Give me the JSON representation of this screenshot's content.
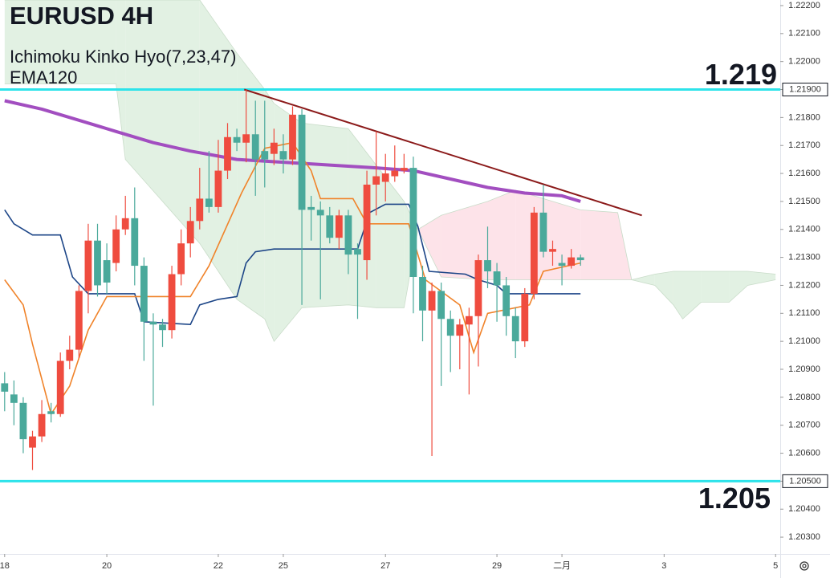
{
  "chart_data": {
    "type": "candlestick",
    "title": "EURUSD 4H",
    "up_color": "#ef4c3f",
    "down_color": "#4aa99b",
    "open": [
      1.2085,
      1.2081,
      1.2078,
      1.2062,
      1.2066,
      1.2075,
      1.2074,
      1.2093,
      1.2097,
      1.2118,
      1.2136,
      1.2129,
      1.2128,
      1.214,
      1.2144,
      1.2127,
      1.2107,
      1.2106,
      1.2104,
      1.2124,
      1.2135,
      1.2143,
      1.2151,
      1.2148,
      1.2161,
      1.2173,
      1.2171,
      1.2174,
      1.2168,
      1.2167,
      1.2168,
      1.2165,
      1.2181,
      1.2148,
      1.2147,
      1.2145,
      1.2137,
      1.2145,
      1.2133,
      1.2129,
      1.2156,
      1.2157,
      1.2159,
      1.2161,
      1.2162,
      1.2123,
      1.2111,
      1.2118,
      1.2108,
      1.2102,
      1.2106,
      1.2109,
      1.2129,
      1.2125,
      1.212,
      1.2109,
      1.21,
      1.2117,
      1.2146,
      1.2132,
      1.2128,
      1.2127,
      1.213
    ],
    "high": [
      1.2089,
      1.2086,
      1.208,
      1.2068,
      1.2079,
      1.2078,
      1.2096,
      1.2102,
      1.212,
      1.2142,
      1.2142,
      1.2135,
      1.2145,
      1.2152,
      1.2155,
      1.213,
      1.211,
      1.2108,
      1.2127,
      1.214,
      1.2148,
      1.2162,
      1.2168,
      1.2172,
      1.2178,
      1.2176,
      1.219,
      1.2186,
      1.2186,
      1.2176,
      1.2174,
      1.2184,
      1.2183,
      1.2152,
      1.215,
      1.2148,
      1.2147,
      1.2147,
      1.2135,
      1.2161,
      1.2175,
      1.2167,
      1.217,
      1.2167,
      1.2166,
      1.2127,
      1.2121,
      1.2121,
      1.2111,
      1.2108,
      1.2112,
      1.2131,
      1.2141,
      1.2128,
      1.2123,
      1.2112,
      1.2119,
      1.2148,
      1.2156,
      1.2136,
      1.2131,
      1.2133,
      1.2131
    ],
    "low": [
      1.2075,
      1.207,
      1.206,
      1.2054,
      1.2064,
      1.2071,
      1.2073,
      1.209,
      1.2094,
      1.211,
      1.2116,
      1.2117,
      1.2125,
      1.2138,
      1.212,
      1.2093,
      1.2077,
      1.2098,
      1.2101,
      1.212,
      1.213,
      1.214,
      1.2146,
      1.2146,
      1.2158,
      1.2168,
      1.2164,
      1.2152,
      1.2155,
      1.2163,
      1.216,
      1.2163,
      1.2113,
      1.2136,
      1.2115,
      1.2135,
      1.2133,
      1.2124,
      1.2108,
      1.2122,
      1.2145,
      1.215,
      1.2157,
      1.216,
      1.211,
      1.21,
      1.2059,
      1.2084,
      1.2089,
      1.209,
      1.2081,
      1.2091,
      1.2119,
      1.2107,
      1.2102,
      1.2094,
      1.2098,
      1.2115,
      1.213,
      1.2127,
      1.212,
      1.2126,
      1.2127
    ],
    "close": [
      1.2082,
      1.2078,
      1.2065,
      1.2066,
      1.2074,
      1.2074,
      1.2093,
      1.2097,
      1.2118,
      1.2136,
      1.212,
      1.2121,
      1.214,
      1.2144,
      1.2127,
      1.2107,
      1.2106,
      1.2104,
      1.2124,
      1.2135,
      1.2143,
      1.2151,
      1.2148,
      1.2161,
      1.2173,
      1.2171,
      1.2174,
      1.2165,
      1.2165,
      1.2171,
      1.2165,
      1.2181,
      1.2147,
      1.2147,
      1.2145,
      1.2137,
      1.2145,
      1.2131,
      1.2131,
      1.2156,
      1.2159,
      1.216,
      1.2161,
      1.2162,
      1.2123,
      1.2111,
      1.2118,
      1.2108,
      1.2102,
      1.2106,
      1.2109,
      1.2129,
      1.2125,
      1.212,
      1.2109,
      1.21,
      1.2117,
      1.2146,
      1.2132,
      1.2133,
      1.2127,
      1.213,
      1.2129
    ],
    "xlim": [
      -0.5,
      83.5
    ],
    "xticks": [
      {
        "value": 0,
        "label": "18"
      },
      {
        "value": 11,
        "label": "20"
      },
      {
        "value": 23,
        "label": "22"
      },
      {
        "value": 30,
        "label": "25"
      },
      {
        "value": 41,
        "label": "27"
      },
      {
        "value": 53,
        "label": "29"
      },
      {
        "value": 60,
        "label": "二月"
      },
      {
        "value": 71,
        "label": "3"
      },
      {
        "value": 83,
        "label": "5"
      }
    ],
    "ylim": [
      1.2024,
      1.2222
    ],
    "yticks": [
      {
        "value": 1.203,
        "label": "1.20300"
      },
      {
        "value": 1.204,
        "label": "1.20400"
      },
      {
        "value": 1.205,
        "label": "1.20500"
      },
      {
        "value": 1.206,
        "label": "1.20600"
      },
      {
        "value": 1.207,
        "label": "1.20700"
      },
      {
        "value": 1.208,
        "label": "1.20800"
      },
      {
        "value": 1.209,
        "label": "1.20900"
      },
      {
        "value": 1.21,
        "label": "1.21000"
      },
      {
        "value": 1.211,
        "label": "1.21100"
      },
      {
        "value": 1.212,
        "label": "1.21200"
      },
      {
        "value": 1.213,
        "label": "1.21300"
      },
      {
        "value": 1.214,
        "label": "1.21400"
      },
      {
        "value": 1.215,
        "label": "1.21500"
      },
      {
        "value": 1.216,
        "label": "1.21600"
      },
      {
        "value": 1.217,
        "label": "1.21700"
      },
      {
        "value": 1.218,
        "label": "1.21800"
      },
      {
        "value": 1.219,
        "label": "1.21900"
      },
      {
        "value": 1.22,
        "label": "1.22000"
      },
      {
        "value": 1.221,
        "label": "1.22100"
      },
      {
        "value": 1.222,
        "label": "1.22200"
      }
    ],
    "grid": false,
    "indicators": [
      {
        "name": "Ichimoku Kinko Hyo(7,23,47)",
        "conversion_line": {
          "color": "#f0832a",
          "x": [
            0,
            2,
            3,
            5,
            7,
            9,
            11,
            14,
            20,
            22,
            25.5,
            28,
            31,
            33,
            34,
            37.5,
            39,
            43.5,
            45.3,
            49,
            50.5,
            52,
            56.5,
            58,
            62
          ],
          "values": [
            1.2122,
            1.2113,
            1.2099,
            1.2074,
            1.2084,
            1.2104,
            1.2116,
            1.2116,
            1.2116,
            1.2127,
            1.2153,
            1.2169,
            1.2171,
            1.2161,
            1.2151,
            1.2151,
            1.2142,
            1.2142,
            1.2122,
            1.2113,
            1.2096,
            1.211,
            1.2113,
            1.2125,
            1.2128
          ]
        },
        "base_line": {
          "color": "#1c4587",
          "x": [
            0,
            1,
            3,
            6,
            7.3,
            9,
            14,
            15,
            20,
            21,
            23,
            25,
            26,
            27,
            29,
            38,
            39.3,
            41,
            43.5,
            44.5,
            45.7,
            49.6,
            51,
            53,
            54,
            62
          ],
          "values": [
            1.2147,
            1.2142,
            1.2138,
            1.2138,
            1.2123,
            1.2117,
            1.2117,
            1.2107,
            1.2106,
            1.2113,
            1.2115,
            1.2116,
            1.2128,
            1.2132,
            1.2133,
            1.2133,
            1.2146,
            1.2149,
            1.2149,
            1.2141,
            1.2125,
            1.2124,
            1.2122,
            1.212,
            1.2117,
            1.2117
          ]
        },
        "cloud": {
          "up_color": "#e2f1e3",
          "down_color": "#fde3e9",
          "x": [
            0,
            12,
            13,
            17,
            21,
            25,
            28,
            29,
            32,
            37,
            40,
            43,
            44.5,
            47,
            52,
            55,
            58,
            62,
            66,
            67.5,
            70,
            72,
            73,
            75,
            78,
            80,
            83
          ],
          "span_a": [
            1.2222,
            1.2222,
            1.2222,
            1.2222,
            1.2222,
            1.2203,
            1.219,
            1.2185,
            1.2178,
            1.2176,
            1.2163,
            1.215,
            1.214,
            1.2123,
            1.2122,
            1.2122,
            1.2122,
            1.2122,
            1.2122,
            1.2122,
            1.2124,
            1.2125,
            1.2125,
            1.2125,
            1.2125,
            1.2125,
            1.2124
          ],
          "span_b": [
            1.2192,
            1.2192,
            1.2165,
            1.215,
            1.2135,
            1.2115,
            1.2108,
            1.21,
            1.2112,
            1.2113,
            1.2112,
            1.2112,
            1.214,
            1.2145,
            1.215,
            1.2154,
            1.2151,
            1.2147,
            1.2146,
            1.2122,
            1.212,
            1.2113,
            1.2108,
            1.2114,
            1.2114,
            1.212,
            1.2122
          ]
        }
      },
      {
        "name": "EMA120",
        "color": "#a24ec0",
        "x": [
          0,
          4,
          8,
          12,
          16,
          20,
          25,
          30,
          35,
          40,
          44,
          48,
          52,
          56,
          60,
          62
        ],
        "values": [
          1.2186,
          1.2183,
          1.2179,
          1.2175,
          1.2171,
          1.2168,
          1.2165,
          1.2164,
          1.2163,
          1.2162,
          1.2161,
          1.2158,
          1.2155,
          1.2153,
          1.2152,
          1.215
        ]
      }
    ],
    "trend_line": {
      "color": "#8b1a1a",
      "x": [
        25.8,
        68.6
      ],
      "values": [
        1.219,
        1.2145
      ]
    },
    "levels": {
      "color": "#2de3ea",
      "items": [
        {
          "value": 1.219,
          "axis_label": "1.21900"
        },
        {
          "value": 1.205,
          "axis_label": "1.20500"
        }
      ]
    }
  }
}
